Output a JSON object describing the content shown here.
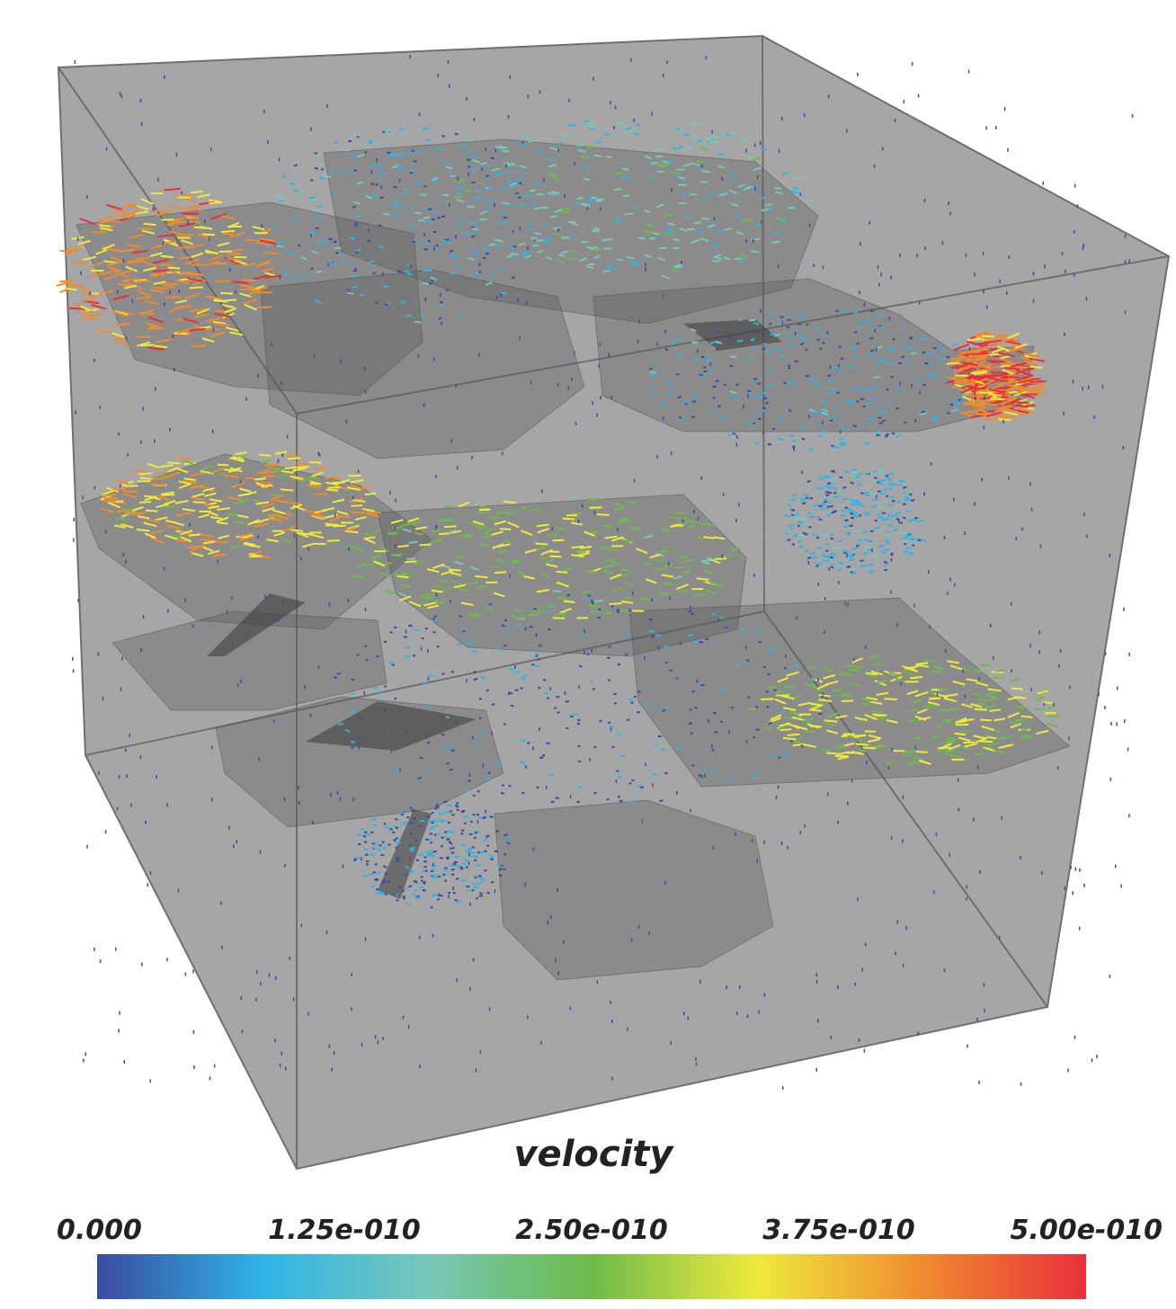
{
  "colorbar": {
    "title": "velocity",
    "lim": [
      0,
      5e-10
    ],
    "ticks": [
      {
        "value": 0,
        "label": "0.000"
      },
      {
        "value": 1.25e-10,
        "label": "1.25e-010"
      },
      {
        "value": 2.5e-10,
        "label": "2.50e-010"
      },
      {
        "value": 3.75e-10,
        "label": "3.75e-010"
      },
      {
        "value": 5e-10,
        "label": "5.00e-010"
      }
    ],
    "colors": [
      "#3b4ba0",
      "#2fb4e8",
      "#76c8b8",
      "#6dbb4a",
      "#eeea3c",
      "#f08b2f",
      "#e8303a"
    ]
  }
}
